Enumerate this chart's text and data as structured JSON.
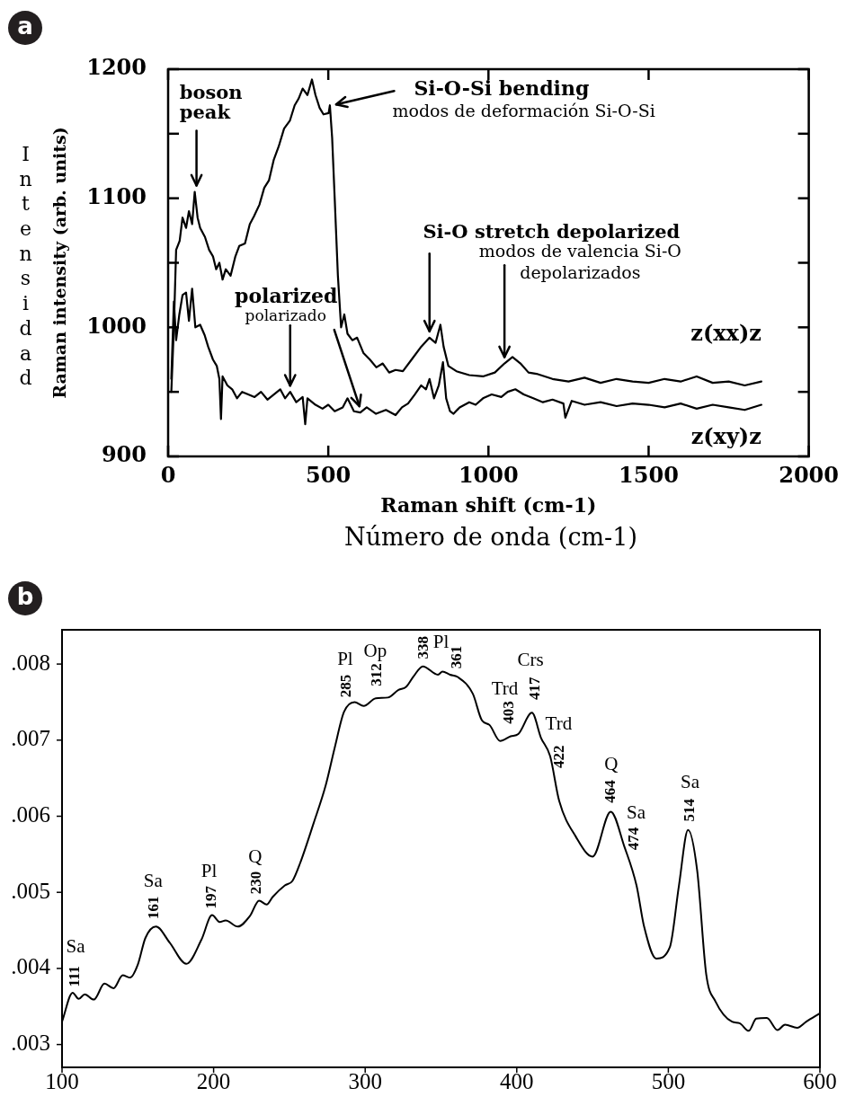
{
  "chart_data": [
    {
      "type": "line",
      "xlabel": "Raman shift (cm-1)",
      "ylabel": "Raman intensity (arb. units)",
      "xlim": [
        0,
        2000
      ],
      "xticks": [
        0,
        500,
        1000,
        1500,
        2000
      ],
      "ylim": [
        900,
        1200
      ],
      "yticks": [
        900,
        {
          "value": 950,
          "label": null
        },
        1000,
        {
          "value": 1050,
          "label": null
        },
        1100,
        {
          "value": 1150,
          "label": null
        },
        1200
      ],
      "series": [
        {
          "name": "z(xx)z",
          "color": "#000000",
          "x": [
            10,
            18,
            25,
            36,
            45,
            56,
            65,
            75,
            83,
            92,
            100,
            115,
            128,
            140,
            150,
            160,
            170,
            180,
            195,
            210,
            222,
            240,
            255,
            268,
            285,
            300,
            315,
            330,
            345,
            362,
            380,
            395,
            407,
            420,
            435,
            449,
            460,
            473,
            485,
            501,
            505,
            512,
            520,
            530,
            540,
            550,
            560,
            575,
            590,
            610,
            630,
            650,
            670,
            690,
            710,
            733,
            760,
            790,
            816,
            835,
            850,
            860,
            875,
            900,
            940,
            983,
            1020,
            1050,
            1075,
            1100,
            1125,
            1150,
            1200,
            1250,
            1300,
            1350,
            1400,
            1450,
            1500,
            1550,
            1600,
            1650,
            1700,
            1750,
            1800,
            1852
          ],
          "values": [
            950,
            1000,
            1060,
            1067,
            1085,
            1077,
            1090,
            1080,
            1105,
            1085,
            1077,
            1070,
            1060,
            1055,
            1045,
            1050,
            1037,
            1045,
            1040,
            1055,
            1063,
            1065,
            1080,
            1086,
            1095,
            1108,
            1114,
            1130,
            1140,
            1154,
            1160,
            1172,
            1177,
            1185,
            1180,
            1192,
            1180,
            1170,
            1165,
            1166,
            1172,
            1147,
            1100,
            1040,
            1000,
            1010,
            995,
            990,
            992,
            980,
            975,
            969,
            972,
            965,
            967,
            966,
            975,
            985,
            992,
            988,
            1002,
            985,
            970,
            966,
            963,
            962,
            965,
            972,
            977,
            972,
            965,
            964,
            960,
            958,
            961,
            957,
            960,
            958,
            957,
            960,
            958,
            962,
            957,
            958,
            955,
            958
          ]
        },
        {
          "name": "z(xy)z",
          "color": "#000000",
          "x": [
            10,
            18,
            25,
            35,
            45,
            56,
            65,
            75,
            85,
            100,
            114,
            125,
            140,
            152,
            160,
            165,
            170,
            185,
            200,
            215,
            231,
            250,
            270,
            290,
            310,
            330,
            350,
            365,
            381,
            400,
            420,
            428,
            435,
            460,
            482,
            500,
            520,
            545,
            560,
            580,
            600,
            620,
            649,
            680,
            710,
            730,
            749,
            770,
            790,
            805,
            816,
            830,
            845,
            858,
            868,
            880,
            891,
            910,
            940,
            960,
            983,
            1010,
            1040,
            1060,
            1084,
            1110,
            1140,
            1170,
            1200,
            1234,
            1240,
            1260,
            1300,
            1350,
            1400,
            1450,
            1500,
            1550,
            1600,
            1650,
            1700,
            1750,
            1800,
            1852
          ],
          "values": [
            960,
            1020,
            990,
            1010,
            1025,
            1027,
            1005,
            1030,
            1000,
            1002,
            994,
            985,
            975,
            970,
            960,
            929,
            962,
            955,
            952,
            945,
            950,
            948,
            946,
            950,
            944,
            948,
            952,
            945,
            950,
            942,
            946,
            925,
            945,
            940,
            937,
            940,
            935,
            938,
            945,
            935,
            934,
            938,
            933,
            936,
            932,
            938,
            941,
            948,
            955,
            952,
            960,
            945,
            955,
            973,
            945,
            935,
            933,
            938,
            942,
            940,
            945,
            948,
            946,
            950,
            952,
            948,
            945,
            942,
            944,
            941,
            930,
            943,
            940,
            942,
            939,
            941,
            940,
            938,
            941,
            937,
            940,
            938,
            936,
            940
          ]
        }
      ],
      "annotations": [
        "a",
        {
          "text": "boson peak",
          "x": 83,
          "y": 1105
        },
        {
          "text": "Si-O-Si bending",
          "x": 505,
          "y": 1172
        },
        "modos de deformación Si-O-Si",
        {
          "text": "polarized",
          "x": 381,
          "y": 950
        },
        {
          "text": "polarizado",
          "x": 600,
          "y": 934
        },
        {
          "text": "Si-O stretch depolarized",
          "x": 816,
          "y": 992
        },
        {
          "text": "modos de valencia Si-O depolarizados",
          "x": 1050,
          "y": 972
        },
        "Intensidad",
        "Número de onda (cm-1)"
      ]
    },
    {
      "type": "line",
      "color": "#000000",
      "xlim": [
        100,
        600
      ],
      "xticks": [
        100,
        200,
        300,
        400,
        500,
        600
      ],
      "ylim": [
        0.0027,
        0.00845
      ],
      "yticks": [
        {
          "value": 0.003,
          "label": ".003"
        },
        {
          "value": 0.004,
          "label": ".004"
        },
        {
          "value": 0.005,
          "label": ".005"
        },
        {
          "value": 0.006,
          "label": ".006"
        },
        {
          "value": 0.007,
          "label": ".007"
        },
        {
          "value": 0.008,
          "label": ".008"
        }
      ],
      "x": [
        100,
        107,
        111,
        115,
        121,
        128,
        134,
        140,
        145,
        150,
        155,
        162,
        171,
        182,
        192,
        199,
        204,
        208,
        216,
        224,
        230,
        235,
        239,
        247,
        252,
        257,
        266,
        274,
        280,
        286,
        293,
        299,
        307,
        315,
        322,
        327,
        332,
        338,
        348,
        351,
        356,
        361,
        371,
        377,
        382,
        389,
        396,
        401,
        410,
        416,
        422,
        428,
        439,
        450,
        462,
        471,
        479,
        484,
        492,
        501,
        507,
        513,
        519,
        525,
        531,
        542,
        547,
        553,
        558,
        565,
        572,
        577,
        585,
        591,
        600
      ],
      "values": [
        0.0033,
        0.00368,
        0.0036,
        0.00366,
        0.00359,
        0.0038,
        0.00374,
        0.00391,
        0.00388,
        0.00405,
        0.0044,
        0.00455,
        0.00434,
        0.00406,
        0.00438,
        0.0047,
        0.00461,
        0.00463,
        0.00455,
        0.00469,
        0.00489,
        0.00484,
        0.00494,
        0.00509,
        0.00515,
        0.00538,
        0.00591,
        0.00641,
        0.00691,
        0.00737,
        0.0075,
        0.00745,
        0.00755,
        0.00756,
        0.00766,
        0.0077,
        0.00784,
        0.00797,
        0.00786,
        0.0079,
        0.00786,
        0.00783,
        0.00761,
        0.00726,
        0.0072,
        0.00699,
        0.00705,
        0.00708,
        0.00736,
        0.00703,
        0.00679,
        0.0062,
        0.00573,
        0.00547,
        0.00606,
        0.0056,
        0.00509,
        0.00455,
        0.00413,
        0.00428,
        0.00509,
        0.00582,
        0.00529,
        0.00392,
        0.00357,
        0.0033,
        0.00328,
        0.00318,
        0.00334,
        0.00335,
        0.00319,
        0.00326,
        0.00322,
        0.0033,
        0.00341
      ],
      "annotations": [
        "b",
        {
          "text": "Sa",
          "x": 111,
          "y": 0.0036
        },
        {
          "text": "111",
          "x": 111,
          "y": 0.0036
        },
        {
          "text": "Sa",
          "x": 161,
          "y": 0.00455
        },
        {
          "text": "161",
          "x": 161,
          "y": 0.00455
        },
        {
          "text": "Pl",
          "x": 197,
          "y": 0.00465
        },
        {
          "text": "197",
          "x": 197,
          "y": 0.00465
        },
        {
          "text": "Q",
          "x": 230,
          "y": 0.00489
        },
        {
          "text": "230",
          "x": 230,
          "y": 0.00489
        },
        {
          "text": "Pl",
          "x": 285,
          "y": 0.00737
        },
        {
          "text": "285",
          "x": 285,
          "y": 0.00737
        },
        {
          "text": "Op",
          "x": 312,
          "y": 0.00756
        },
        {
          "text": "312",
          "x": 312,
          "y": 0.00756
        },
        {
          "text": "338",
          "x": 338,
          "y": 0.00797
        },
        {
          "text": "Pl",
          "x": 338,
          "y": 0.00797
        },
        {
          "text": "361",
          "x": 361,
          "y": 0.00783
        },
        {
          "text": "Trd",
          "x": 403,
          "y": 0.00708
        },
        {
          "text": "403",
          "x": 403,
          "y": 0.00708
        },
        {
          "text": "Crs",
          "x": 410,
          "y": 0.00736
        },
        {
          "text": "417",
          "x": 410,
          "y": 0.00736
        },
        {
          "text": "Trd",
          "x": 422,
          "y": 0.00679
        },
        {
          "text": "422",
          "x": 422,
          "y": 0.00679
        },
        {
          "text": "Q",
          "x": 464,
          "y": 0.00604
        },
        {
          "text": "464",
          "x": 464,
          "y": 0.00604
        },
        {
          "text": "Sa",
          "x": 474,
          "y": 0.00548
        },
        {
          "text": "474",
          "x": 474,
          "y": 0.00548
        },
        {
          "text": "Sa",
          "x": 514,
          "y": 0.00582
        },
        {
          "text": "514",
          "x": 514,
          "y": 0.00582
        }
      ]
    }
  ]
}
